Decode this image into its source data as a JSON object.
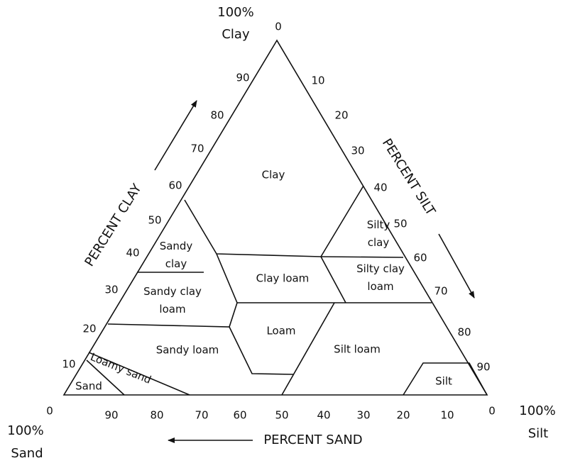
{
  "corners": {
    "clay": {
      "percent": "100%",
      "label": "Clay"
    },
    "sand": {
      "percent": "100%",
      "label": "Sand"
    },
    "silt": {
      "percent": "100%",
      "label": "Silt"
    }
  },
  "axes": {
    "clay": {
      "title": "PERCENT CLAY",
      "ticks": [
        "0",
        "10",
        "20",
        "30",
        "40",
        "50",
        "60",
        "70",
        "80",
        "90"
      ]
    },
    "silt": {
      "title": "PERCENT SILT",
      "ticks": [
        "0",
        "10",
        "20",
        "30",
        "40",
        "50",
        "60",
        "70",
        "80",
        "90"
      ]
    },
    "sand": {
      "title": "PERCENT SAND",
      "ticks": [
        "90",
        "80",
        "70",
        "60",
        "50",
        "40",
        "30",
        "20",
        "10",
        "0"
      ]
    }
  },
  "regions": [
    {
      "label": [
        "Clay"
      ]
    },
    {
      "label": [
        "Silty",
        "clay"
      ]
    },
    {
      "label": [
        "Sandy",
        "clay"
      ]
    },
    {
      "label": [
        "Clay loam"
      ]
    },
    {
      "label": [
        "Silty clay",
        "loam"
      ]
    },
    {
      "label": [
        "Sandy clay",
        "loam"
      ]
    },
    {
      "label": [
        "Loam"
      ]
    },
    {
      "label": [
        "Sandy loam"
      ]
    },
    {
      "label": [
        "Silt loam"
      ]
    },
    {
      "label": [
        "Loamy sand"
      ]
    },
    {
      "label": [
        "Sand"
      ]
    },
    {
      "label": [
        "Silt"
      ]
    }
  ]
}
